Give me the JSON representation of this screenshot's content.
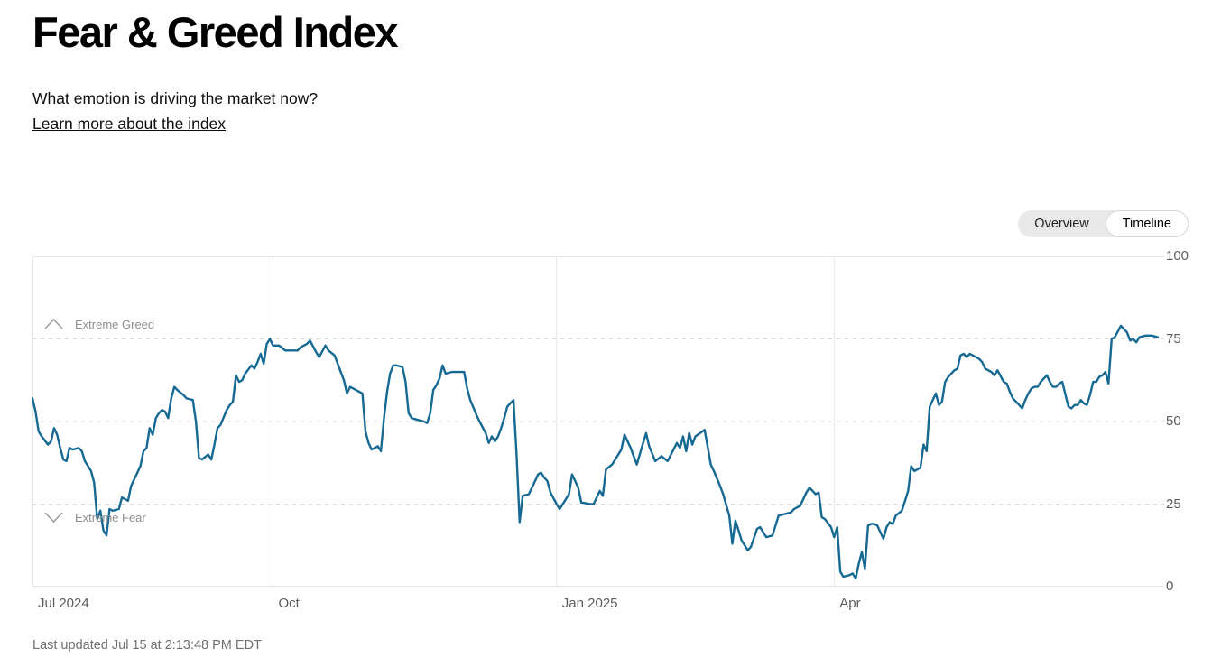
{
  "page": {
    "title": "Fear & Greed Index",
    "subtitle": "What emotion is driving the market now?",
    "learn_more": "Learn more about the index",
    "last_updated": "Last updated Jul 15 at 2:13:48 PM EDT"
  },
  "view_toggle": {
    "options": [
      {
        "label": "Overview",
        "selected": false
      },
      {
        "label": "Timeline",
        "selected": true
      }
    ]
  },
  "chart": {
    "annotations": {
      "greed": "Extreme Greed",
      "fear": "Extreme Fear"
    },
    "line_color": "#156992",
    "grid_solid_color": "#e7e7e7",
    "grid_dashed_color": "#d8d8d8",
    "axis_label_color": "#5b5c5e"
  },
  "chart_data": {
    "type": "line",
    "title": "Fear & Greed Index",
    "ylabel": "",
    "xlabel": "",
    "ylim": [
      0,
      100
    ],
    "y_ticks": [
      100,
      75,
      50,
      25,
      0
    ],
    "dashed_levels": [
      75,
      50,
      25
    ],
    "solid_levels": [
      100,
      0
    ],
    "thresholds": {
      "extreme_greed": 75,
      "extreme_fear": 25
    },
    "x_range": [
      "2024-07-15",
      "2025-07-15"
    ],
    "x_gridlines": [
      "2024-10-01",
      "2025-01-01",
      "2025-04-01"
    ],
    "x_labels": [
      {
        "label": "Jul 2024",
        "date": "2024-07-15"
      },
      {
        "label": "Oct",
        "date": "2024-10-01"
      },
      {
        "label": "Jan 2025",
        "date": "2025-01-01"
      },
      {
        "label": "Apr",
        "date": "2025-04-01"
      }
    ],
    "legend": [],
    "grid": true,
    "points": [
      [
        "2024-07-15",
        57
      ],
      [
        "2024-07-16",
        53
      ],
      [
        "2024-07-17",
        47
      ],
      [
        "2024-07-18",
        45.5
      ],
      [
        "2024-07-20",
        43
      ],
      [
        "2024-07-21",
        44
      ],
      [
        "2024-07-22",
        48
      ],
      [
        "2024-07-23",
        46
      ],
      [
        "2024-07-24",
        42
      ],
      [
        "2024-07-25",
        38.5
      ],
      [
        "2024-07-26",
        38
      ],
      [
        "2024-07-27",
        42
      ],
      [
        "2024-07-28",
        41.5
      ],
      [
        "2024-07-30",
        42
      ],
      [
        "2024-07-31",
        41
      ],
      [
        "2024-08-01",
        38
      ],
      [
        "2024-08-03",
        35
      ],
      [
        "2024-08-04",
        31.5
      ],
      [
        "2024-08-05",
        20.5
      ],
      [
        "2024-08-06",
        23
      ],
      [
        "2024-08-07",
        17
      ],
      [
        "2024-08-08",
        15.5
      ],
      [
        "2024-08-09",
        23.5
      ],
      [
        "2024-08-10",
        23
      ],
      [
        "2024-08-12",
        23.5
      ],
      [
        "2024-08-13",
        27
      ],
      [
        "2024-08-14",
        26.5
      ],
      [
        "2024-08-15",
        26
      ],
      [
        "2024-08-16",
        30.5
      ],
      [
        "2024-08-17",
        32.5
      ],
      [
        "2024-08-18",
        34.5
      ],
      [
        "2024-08-19",
        36.5
      ],
      [
        "2024-08-20",
        41
      ],
      [
        "2024-08-21",
        42
      ],
      [
        "2024-08-22",
        48
      ],
      [
        "2024-08-23",
        46
      ],
      [
        "2024-08-24",
        51
      ],
      [
        "2024-08-25",
        52.5
      ],
      [
        "2024-08-26",
        53.5
      ],
      [
        "2024-08-27",
        53
      ],
      [
        "2024-08-28",
        51
      ],
      [
        "2024-08-29",
        57
      ],
      [
        "2024-08-30",
        60.5
      ],
      [
        "2024-08-31",
        59.5
      ],
      [
        "2024-09-02",
        58
      ],
      [
        "2024-09-03",
        57
      ],
      [
        "2024-09-05",
        56.5
      ],
      [
        "2024-09-06",
        50
      ],
      [
        "2024-09-07",
        39
      ],
      [
        "2024-09-08",
        38.5
      ],
      [
        "2024-09-10",
        40
      ],
      [
        "2024-09-11",
        38.5
      ],
      [
        "2024-09-12",
        43
      ],
      [
        "2024-09-13",
        48
      ],
      [
        "2024-09-14",
        49
      ],
      [
        "2024-09-16",
        53.5
      ],
      [
        "2024-09-17",
        55
      ],
      [
        "2024-09-18",
        56
      ],
      [
        "2024-09-19",
        64
      ],
      [
        "2024-09-20",
        62
      ],
      [
        "2024-09-21",
        62.5
      ],
      [
        "2024-09-22",
        64.5
      ],
      [
        "2024-09-24",
        67
      ],
      [
        "2024-09-25",
        66
      ],
      [
        "2024-09-26",
        68
      ],
      [
        "2024-09-27",
        70.5
      ],
      [
        "2024-09-28",
        67.5
      ],
      [
        "2024-09-29",
        73.5
      ],
      [
        "2024-09-30",
        75
      ],
      [
        "2024-10-01",
        73
      ],
      [
        "2024-10-03",
        73
      ],
      [
        "2024-10-05",
        71.5
      ],
      [
        "2024-10-07",
        71.5
      ],
      [
        "2024-10-09",
        71.5
      ],
      [
        "2024-10-10",
        72.5
      ],
      [
        "2024-10-12",
        73.5
      ],
      [
        "2024-10-13",
        74.5
      ],
      [
        "2024-10-15",
        71
      ],
      [
        "2024-10-16",
        69.5
      ],
      [
        "2024-10-18",
        73
      ],
      [
        "2024-10-19",
        71.5
      ],
      [
        "2024-10-21",
        70
      ],
      [
        "2024-10-23",
        65
      ],
      [
        "2024-10-24",
        62.5
      ],
      [
        "2024-10-25",
        58.5
      ],
      [
        "2024-10-26",
        60.5
      ],
      [
        "2024-10-28",
        59.5
      ],
      [
        "2024-10-30",
        58.5
      ],
      [
        "2024-10-31",
        47
      ],
      [
        "2024-11-01",
        43.5
      ],
      [
        "2024-11-02",
        41.5
      ],
      [
        "2024-11-04",
        42.5
      ],
      [
        "2024-11-05",
        41
      ],
      [
        "2024-11-06",
        51
      ],
      [
        "2024-11-07",
        59
      ],
      [
        "2024-11-08",
        64.5
      ],
      [
        "2024-11-09",
        67
      ],
      [
        "2024-11-10",
        67
      ],
      [
        "2024-11-12",
        66.5
      ],
      [
        "2024-11-13",
        62
      ],
      [
        "2024-11-14",
        52.5
      ],
      [
        "2024-11-15",
        51
      ],
      [
        "2024-11-17",
        50.5
      ],
      [
        "2024-11-19",
        50
      ],
      [
        "2024-11-20",
        49.5
      ],
      [
        "2024-11-21",
        52.5
      ],
      [
        "2024-11-22",
        59.5
      ],
      [
        "2024-11-23",
        61
      ],
      [
        "2024-11-24",
        63
      ],
      [
        "2024-11-25",
        67
      ],
      [
        "2024-11-26",
        64.5
      ],
      [
        "2024-11-28",
        65
      ],
      [
        "2024-11-30",
        65
      ],
      [
        "2024-12-01",
        65
      ],
      [
        "2024-12-02",
        65
      ],
      [
        "2024-12-03",
        60
      ],
      [
        "2024-12-04",
        56.5
      ],
      [
        "2024-12-06",
        52
      ],
      [
        "2024-12-07",
        50
      ],
      [
        "2024-12-09",
        46.5
      ],
      [
        "2024-12-10",
        43.5
      ],
      [
        "2024-12-11",
        45.5
      ],
      [
        "2024-12-12",
        44
      ],
      [
        "2024-12-13",
        45.5
      ],
      [
        "2024-12-14",
        48
      ],
      [
        "2024-12-15",
        51
      ],
      [
        "2024-12-16",
        54.5
      ],
      [
        "2024-12-18",
        56.5
      ],
      [
        "2024-12-19",
        40
      ],
      [
        "2024-12-20",
        19.5
      ],
      [
        "2024-12-21",
        27.5
      ],
      [
        "2024-12-23",
        28
      ],
      [
        "2024-12-24",
        30
      ],
      [
        "2024-12-26",
        34
      ],
      [
        "2024-12-27",
        34.5
      ],
      [
        "2024-12-28",
        33
      ],
      [
        "2024-12-29",
        32
      ],
      [
        "2024-12-30",
        28.5
      ],
      [
        "2025-01-01",
        25
      ],
      [
        "2025-01-02",
        23.5
      ],
      [
        "2025-01-05",
        28
      ],
      [
        "2025-01-06",
        34
      ],
      [
        "2025-01-08",
        30
      ],
      [
        "2025-01-09",
        25.5
      ],
      [
        "2025-01-12",
        25
      ],
      [
        "2025-01-13",
        25
      ],
      [
        "2025-01-15",
        29
      ],
      [
        "2025-01-16",
        27.5
      ],
      [
        "2025-01-17",
        35.5
      ],
      [
        "2025-01-19",
        37
      ],
      [
        "2025-01-22",
        41.5
      ],
      [
        "2025-01-23",
        46
      ],
      [
        "2025-01-25",
        42
      ],
      [
        "2025-01-27",
        37
      ],
      [
        "2025-01-30",
        46.5
      ],
      [
        "2025-01-31",
        42.5
      ],
      [
        "2025-02-02",
        38
      ],
      [
        "2025-02-04",
        39.5
      ],
      [
        "2025-02-06",
        38
      ],
      [
        "2025-02-09",
        43.5
      ],
      [
        "2025-02-10",
        42
      ],
      [
        "2025-02-11",
        45.5
      ],
      [
        "2025-02-12",
        41
      ],
      [
        "2025-02-13",
        46.5
      ],
      [
        "2025-02-14",
        43
      ],
      [
        "2025-02-15",
        45.5
      ],
      [
        "2025-02-18",
        47.5
      ],
      [
        "2025-02-20",
        37
      ],
      [
        "2025-02-21",
        35
      ],
      [
        "2025-02-23",
        30.5
      ],
      [
        "2025-02-24",
        28
      ],
      [
        "2025-02-26",
        21.5
      ],
      [
        "2025-02-27",
        13
      ],
      [
        "2025-02-28",
        20
      ],
      [
        "2025-03-01",
        17
      ],
      [
        "2025-03-02",
        14
      ],
      [
        "2025-03-04",
        11
      ],
      [
        "2025-03-05",
        12
      ],
      [
        "2025-03-07",
        17.5
      ],
      [
        "2025-03-08",
        18
      ],
      [
        "2025-03-10",
        15
      ],
      [
        "2025-03-12",
        15.5
      ],
      [
        "2025-03-14",
        21.5
      ],
      [
        "2025-03-16",
        22
      ],
      [
        "2025-03-18",
        22.5
      ],
      [
        "2025-03-19",
        23.5
      ],
      [
        "2025-03-21",
        24.5
      ],
      [
        "2025-03-23",
        28.5
      ],
      [
        "2025-03-24",
        30
      ],
      [
        "2025-03-26",
        28
      ],
      [
        "2025-03-27",
        28.5
      ],
      [
        "2025-03-28",
        21
      ],
      [
        "2025-03-29",
        20.5
      ],
      [
        "2025-03-31",
        18
      ],
      [
        "2025-04-01",
        15
      ],
      [
        "2025-04-02",
        18
      ],
      [
        "2025-04-03",
        4.5
      ],
      [
        "2025-04-04",
        3
      ],
      [
        "2025-04-06",
        3.5
      ],
      [
        "2025-04-07",
        4
      ],
      [
        "2025-04-08",
        2.5
      ],
      [
        "2025-04-09",
        7
      ],
      [
        "2025-04-10",
        10.5
      ],
      [
        "2025-04-11",
        5.5
      ],
      [
        "2025-04-12",
        18.5
      ],
      [
        "2025-04-13",
        19
      ],
      [
        "2025-04-14",
        19
      ],
      [
        "2025-04-15",
        18.5
      ],
      [
        "2025-04-17",
        14.5
      ],
      [
        "2025-04-18",
        18
      ],
      [
        "2025-04-19",
        19.5
      ],
      [
        "2025-04-20",
        19
      ],
      [
        "2025-04-21",
        21.5
      ],
      [
        "2025-04-23",
        23
      ],
      [
        "2025-04-24",
        26
      ],
      [
        "2025-04-25",
        29
      ],
      [
        "2025-04-26",
        36.5
      ],
      [
        "2025-04-27",
        35
      ],
      [
        "2025-04-28",
        35.5
      ],
      [
        "2025-04-29",
        36
      ],
      [
        "2025-04-30",
        43
      ],
      [
        "2025-05-01",
        41
      ],
      [
        "2025-05-02",
        54.5
      ],
      [
        "2025-05-03",
        56.5
      ],
      [
        "2025-05-04",
        58.5
      ],
      [
        "2025-05-05",
        55
      ],
      [
        "2025-05-06",
        56
      ],
      [
        "2025-05-07",
        62
      ],
      [
        "2025-05-08",
        63.5
      ],
      [
        "2025-05-10",
        65.5
      ],
      [
        "2025-05-11",
        66
      ],
      [
        "2025-05-12",
        70
      ],
      [
        "2025-05-13",
        70.5
      ],
      [
        "2025-05-14",
        69.5
      ],
      [
        "2025-05-15",
        70.5
      ],
      [
        "2025-05-16",
        70
      ],
      [
        "2025-05-17",
        69.5
      ],
      [
        "2025-05-18",
        69
      ],
      [
        "2025-05-19",
        68
      ],
      [
        "2025-05-20",
        66
      ],
      [
        "2025-05-22",
        65
      ],
      [
        "2025-05-23",
        64
      ],
      [
        "2025-05-24",
        65.5
      ],
      [
        "2025-05-26",
        62
      ],
      [
        "2025-05-27",
        61.5
      ],
      [
        "2025-05-28",
        59
      ],
      [
        "2025-05-29",
        57
      ],
      [
        "2025-05-31",
        55
      ],
      [
        "2025-06-01",
        54
      ],
      [
        "2025-06-02",
        56.5
      ],
      [
        "2025-06-03",
        58.5
      ],
      [
        "2025-06-04",
        60
      ],
      [
        "2025-06-05",
        60.5
      ],
      [
        "2025-06-06",
        60.5
      ],
      [
        "2025-06-07",
        62
      ],
      [
        "2025-06-09",
        64
      ],
      [
        "2025-06-10",
        62
      ],
      [
        "2025-06-11",
        60.5
      ],
      [
        "2025-06-12",
        60.5
      ],
      [
        "2025-06-13",
        61.5
      ],
      [
        "2025-06-14",
        62
      ],
      [
        "2025-06-16",
        54.5
      ],
      [
        "2025-06-17",
        54
      ],
      [
        "2025-06-18",
        55
      ],
      [
        "2025-06-19",
        55
      ],
      [
        "2025-06-20",
        56.5
      ],
      [
        "2025-06-21",
        55.5
      ],
      [
        "2025-06-22",
        55
      ],
      [
        "2025-06-23",
        58
      ],
      [
        "2025-06-24",
        62
      ],
      [
        "2025-06-25",
        62
      ],
      [
        "2025-06-26",
        63.5
      ],
      [
        "2025-06-27",
        64
      ],
      [
        "2025-06-28",
        65
      ],
      [
        "2025-06-29",
        61.5
      ],
      [
        "2025-06-30",
        75
      ],
      [
        "2025-07-01",
        75.5
      ],
      [
        "2025-07-03",
        79
      ],
      [
        "2025-07-04",
        78
      ],
      [
        "2025-07-05",
        77
      ],
      [
        "2025-07-06",
        74.5
      ],
      [
        "2025-07-07",
        75
      ],
      [
        "2025-07-08",
        74
      ],
      [
        "2025-07-09",
        75.5
      ],
      [
        "2025-07-11",
        76
      ],
      [
        "2025-07-12",
        76
      ],
      [
        "2025-07-13",
        76
      ],
      [
        "2025-07-15",
        75.5
      ]
    ]
  }
}
